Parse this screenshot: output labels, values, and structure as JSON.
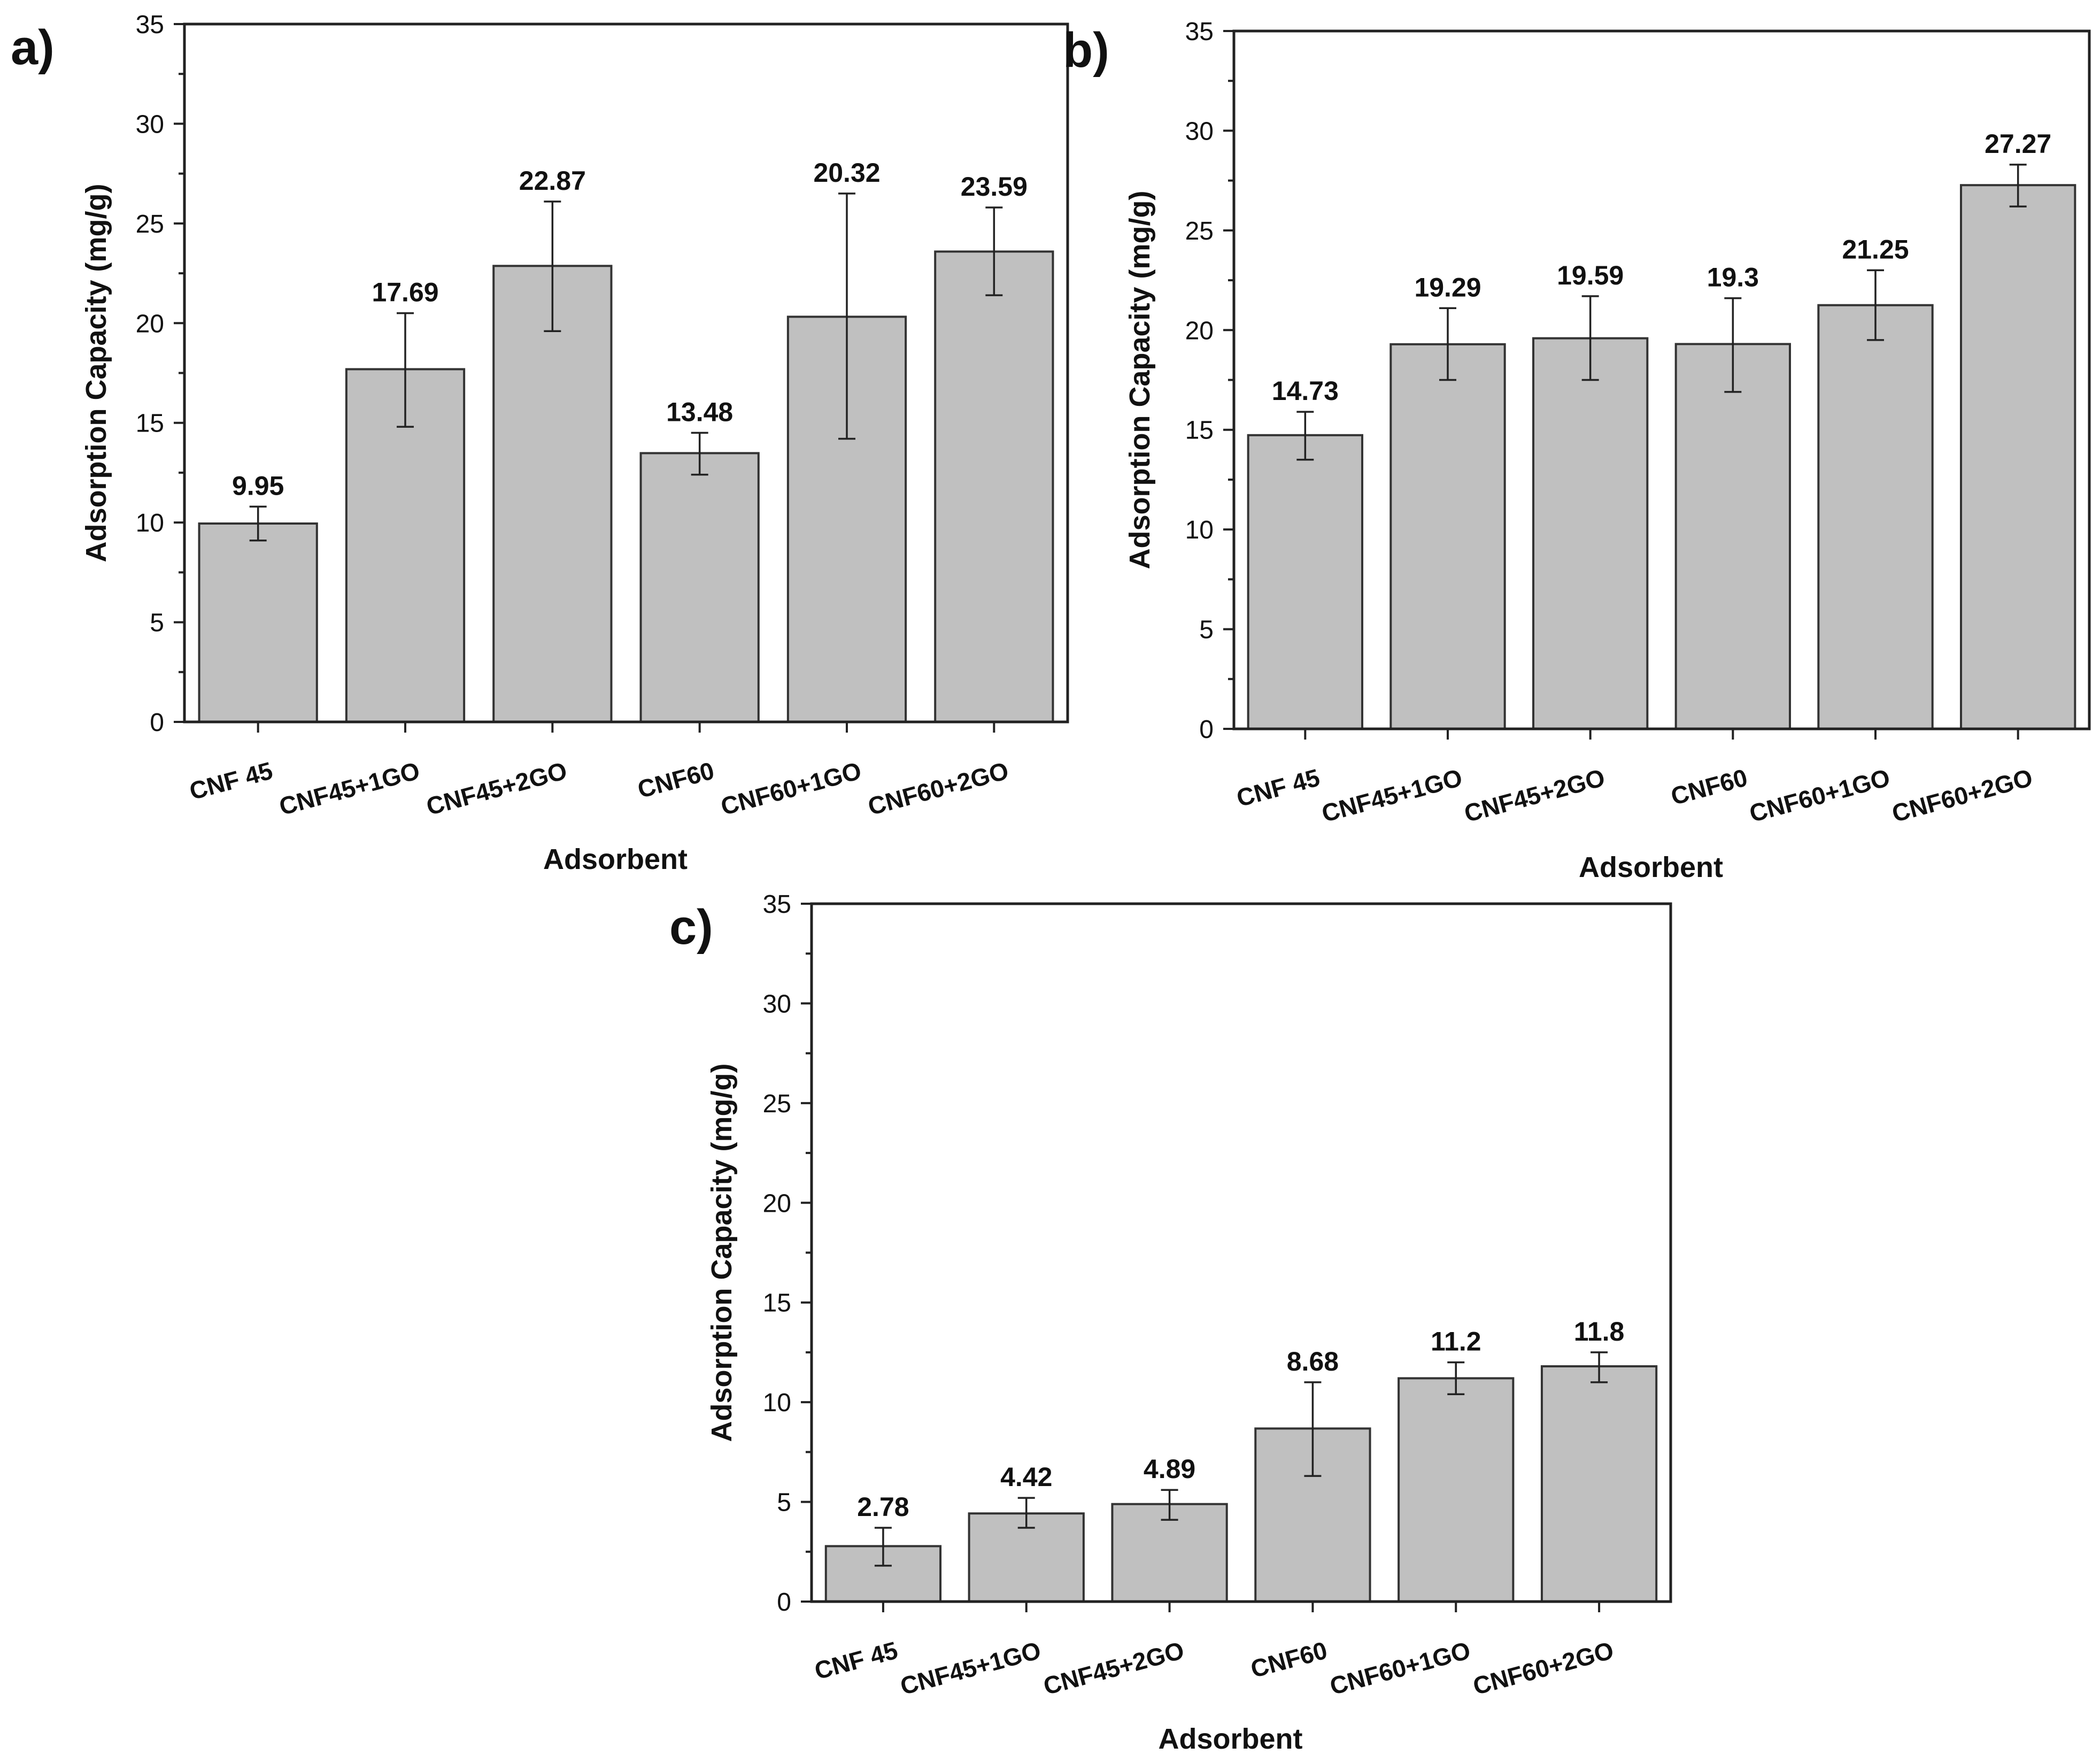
{
  "chart_data": [
    {
      "type": "bar",
      "panel": "a)",
      "categories": [
        "CNF 45",
        "CNF45+1GO",
        "CNF45+2GO",
        "CNF60",
        "CNF60+1GO",
        "CNF60+2GO"
      ],
      "values": [
        9.95,
        17.69,
        22.87,
        13.48,
        20.32,
        23.59
      ],
      "value_labels": [
        "9.95",
        "17.69",
        "22.87",
        "13.48",
        "20.32",
        "23.59"
      ],
      "error_low": [
        9.1,
        14.8,
        19.6,
        12.4,
        14.2,
        21.4
      ],
      "error_high": [
        10.8,
        20.5,
        26.1,
        14.5,
        26.5,
        25.8
      ],
      "xlabel": "Adsorbent",
      "ylabel": "Adsorption Capacity (mg/g)",
      "ylim": [
        0,
        35
      ],
      "yticks": [
        0,
        5,
        10,
        15,
        20,
        25,
        30,
        35
      ],
      "ytick_labels": [
        "0",
        "5",
        "10",
        "15",
        "20",
        "25",
        "30",
        "35"
      ],
      "grid": false
    },
    {
      "type": "bar",
      "panel": "b)",
      "categories": [
        "CNF 45",
        "CNF45+1GO",
        "CNF45+2GO",
        "CNF60",
        "CNF60+1GO",
        "CNF60+2GO"
      ],
      "values": [
        14.73,
        19.29,
        19.59,
        19.3,
        21.25,
        27.27
      ],
      "value_labels": [
        "14.73",
        "19.29",
        "19.59",
        "19.3",
        "21.25",
        "27.27"
      ],
      "error_low": [
        13.5,
        17.5,
        17.5,
        16.9,
        19.5,
        26.2
      ],
      "error_high": [
        15.9,
        21.1,
        21.7,
        21.6,
        23.0,
        28.3
      ],
      "xlabel": "Adsorbent",
      "ylabel": "Adsorption Capacity (mg/g)",
      "ylim": [
        0,
        35
      ],
      "yticks": [
        0,
        5,
        10,
        15,
        20,
        25,
        30,
        35
      ],
      "ytick_labels": [
        "0",
        "5",
        "10",
        "15",
        "20",
        "25",
        "30",
        "35"
      ],
      "grid": false
    },
    {
      "type": "bar",
      "panel": "c)",
      "categories": [
        "CNF 45",
        "CNF45+1GO",
        "CNF45+2GO",
        "CNF60",
        "CNF60+1GO",
        "CNF60+2GO"
      ],
      "values": [
        2.78,
        4.42,
        4.89,
        8.68,
        11.2,
        11.8
      ],
      "value_labels": [
        "2.78",
        "4.42",
        "4.89",
        "8.68",
        "11.2",
        "11.8"
      ],
      "error_low": [
        1.8,
        3.7,
        4.1,
        6.3,
        10.4,
        11.0
      ],
      "error_high": [
        3.7,
        5.2,
        5.6,
        11.0,
        12.0,
        12.5
      ],
      "xlabel": "Adsorbent",
      "ylabel": "Adsorption Capacity (mg/g)",
      "ylim": [
        0,
        35
      ],
      "yticks": [
        0,
        5,
        10,
        15,
        20,
        25,
        30,
        35
      ],
      "ytick_labels": [
        "0",
        "5",
        "10",
        "15",
        "20",
        "25",
        "30",
        "35"
      ],
      "grid": false
    }
  ]
}
